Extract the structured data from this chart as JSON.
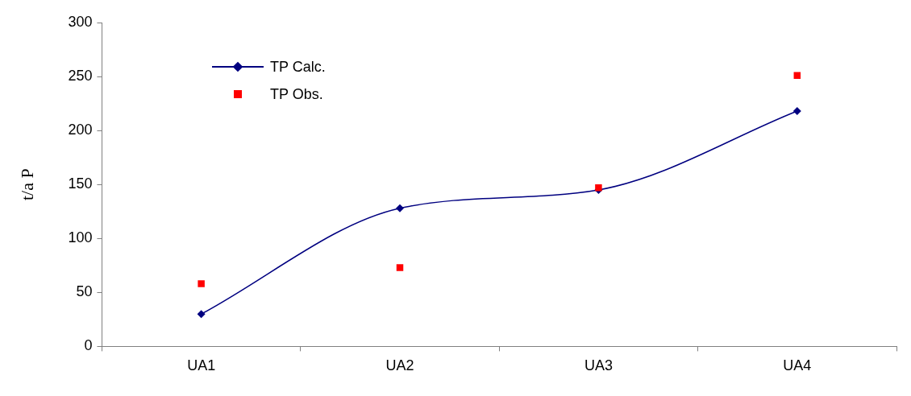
{
  "chart_data": {
    "type": "line",
    "ylabel": "t/a P",
    "categories": [
      "UA1",
      "UA2",
      "UA3",
      "UA4"
    ],
    "series": [
      {
        "name": "TP Calc.",
        "color": "#000080",
        "marker": "diamond",
        "values": [
          30,
          128,
          145,
          218
        ]
      },
      {
        "name": "TP Obs.",
        "type": "scatter",
        "color": "#ff0000",
        "marker": "square",
        "values": [
          58,
          73,
          147,
          251
        ]
      }
    ],
    "ylim": [
      0,
      300
    ],
    "yticks": [
      0,
      50,
      100,
      150,
      200,
      250,
      300
    ],
    "grid": false,
    "legend": "top left"
  }
}
